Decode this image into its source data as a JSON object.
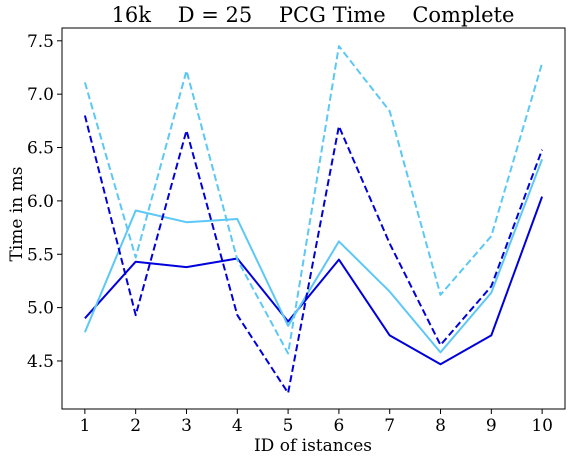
{
  "chart_data": {
    "type": "line",
    "title": "16k    D = 25    PCG Time    Complete",
    "xlabel": "ID of istances",
    "ylabel": "Time in ms",
    "x": [
      1,
      2,
      3,
      4,
      5,
      6,
      7,
      8,
      9,
      10
    ],
    "xlim": [
      0.55,
      10.45
    ],
    "ylim": [
      4.05,
      7.62
    ],
    "yticks": [
      4.5,
      5.0,
      5.5,
      6.0,
      6.5,
      7.0,
      7.5
    ],
    "ytick_labels": [
      "4.5",
      "5.0",
      "5.5",
      "6.0",
      "6.5",
      "7.0",
      "7.5"
    ],
    "xtick_labels": [
      "1",
      "2",
      "3",
      "4",
      "5",
      "6",
      "7",
      "8",
      "9",
      "10"
    ],
    "grid": false,
    "legend": "none",
    "series": [
      {
        "color": "#0000dd",
        "dash": "solid",
        "values": [
          4.9,
          5.43,
          5.38,
          5.46,
          4.87,
          5.45,
          4.74,
          4.47,
          4.74,
          6.04
        ]
      },
      {
        "color": "#5bc8f5",
        "dash": "solid",
        "values": [
          4.77,
          5.91,
          5.8,
          5.83,
          4.83,
          5.62,
          5.15,
          4.58,
          5.14,
          6.39
        ]
      },
      {
        "color": "#0000dd",
        "dash": "dashed",
        "values": [
          6.8,
          4.93,
          6.66,
          4.93,
          4.2,
          6.7,
          5.6,
          4.65,
          5.2,
          6.48
        ]
      },
      {
        "color": "#5bc8f5",
        "dash": "dashed",
        "values": [
          7.11,
          5.47,
          7.22,
          5.45,
          4.57,
          7.45,
          6.84,
          5.12,
          5.67,
          7.29
        ]
      }
    ]
  }
}
